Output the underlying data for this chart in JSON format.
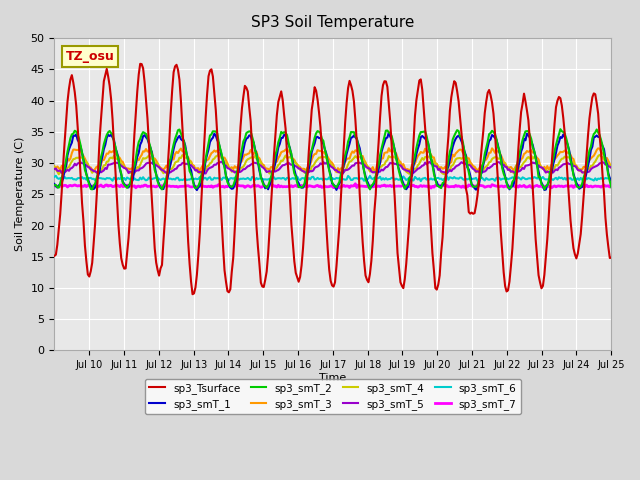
{
  "title": "SP3 Soil Temperature",
  "xlabel": "Time",
  "ylabel": "Soil Temperature (C)",
  "ylim": [
    0,
    50
  ],
  "background_color": "#d9d9d9",
  "plot_bg_color": "#e8e8e8",
  "grid_color": "#ffffff",
  "tz_label": "TZ_osu",
  "tz_bg": "#ffffcc",
  "tz_fg": "#cc0000",
  "x_tick_labels": [
    "Jul 10",
    "Jul 11",
    "Jul 12",
    "Jul 13",
    "Jul 14",
    "Jul 15",
    "Jul 16",
    "Jul 17",
    "Jul 18",
    "Jul 19",
    "Jul 20",
    "Jul 21",
    "Jul 22",
    "Jul 23",
    "Jul 24",
    "Jul 25"
  ],
  "series": {
    "sp3_Tsurface": {
      "color": "#cc0000",
      "linewidth": 1.5
    },
    "sp3_smT_1": {
      "color": "#0000cc",
      "linewidth": 1.5
    },
    "sp3_smT_2": {
      "color": "#00cc00",
      "linewidth": 1.5
    },
    "sp3_smT_3": {
      "color": "#ff9900",
      "linewidth": 1.5
    },
    "sp3_smT_4": {
      "color": "#cccc00",
      "linewidth": 1.5
    },
    "sp3_smT_5": {
      "color": "#9900cc",
      "linewidth": 1.5
    },
    "sp3_smT_6": {
      "color": "#00cccc",
      "linewidth": 1.5
    },
    "sp3_smT_7": {
      "color": "#ff00ff",
      "linewidth": 2.0
    }
  },
  "legend_items": [
    {
      "label": "sp3_Tsurface",
      "color": "#cc0000"
    },
    {
      "label": "sp3_smT_1",
      "color": "#0000cc"
    },
    {
      "label": "sp3_smT_2",
      "color": "#00cc00"
    },
    {
      "label": "sp3_smT_3",
      "color": "#ff9900"
    },
    {
      "label": "sp3_smT_4",
      "color": "#cccc00"
    },
    {
      "label": "sp3_smT_5",
      "color": "#9900cc"
    },
    {
      "label": "sp3_smT_6",
      "color": "#00cccc"
    },
    {
      "label": "sp3_smT_7",
      "color": "#ff00ff"
    }
  ]
}
